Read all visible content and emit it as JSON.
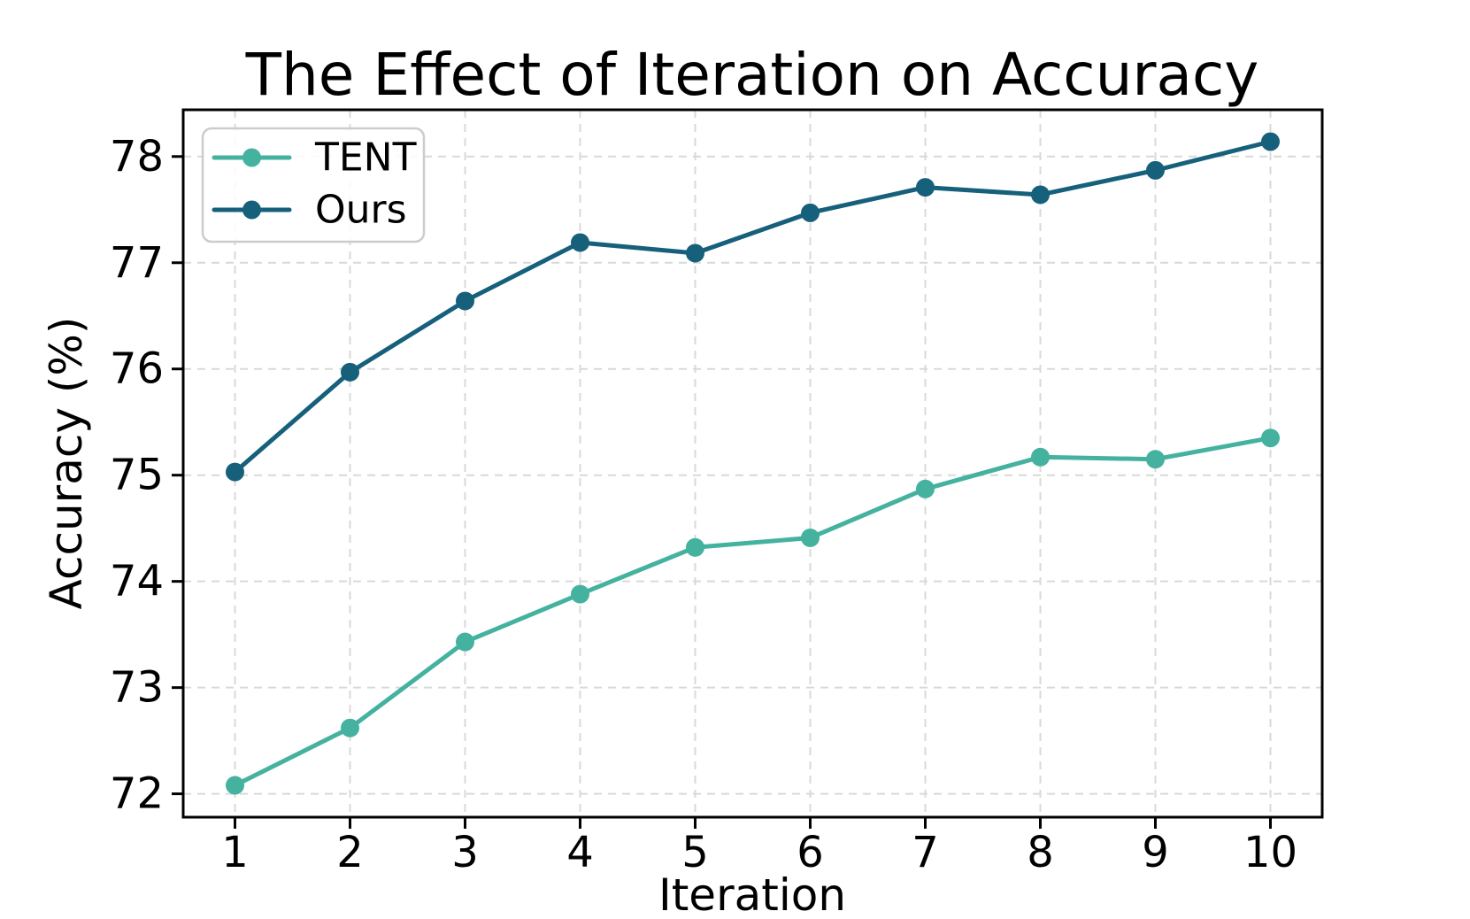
{
  "chart_data": {
    "type": "line",
    "title": "The Effect of Iteration on Accuracy",
    "xlabel": "Iteration",
    "ylabel": "Accuracy (%)",
    "x": [
      1,
      2,
      3,
      4,
      5,
      6,
      7,
      8,
      9,
      10
    ],
    "series": [
      {
        "name": "TENT",
        "color": "#45b2a0",
        "values": [
          72.08,
          72.62,
          73.43,
          73.88,
          74.32,
          74.41,
          74.87,
          75.17,
          75.15,
          75.35
        ]
      },
      {
        "name": "Ours",
        "color": "#16607c",
        "values": [
          75.03,
          75.97,
          76.64,
          77.19,
          77.09,
          77.47,
          77.71,
          77.64,
          77.87,
          78.14
        ]
      }
    ],
    "xticks": [
      1,
      2,
      3,
      4,
      5,
      6,
      7,
      8,
      9,
      10
    ],
    "yticks": [
      72,
      73,
      74,
      75,
      76,
      77,
      78
    ],
    "xlim": [
      0.55,
      10.45
    ],
    "ylim": [
      71.78,
      78.44
    ],
    "grid": true,
    "grid_style": "dashed",
    "grid_color": "#d9d9d9",
    "legend_position": "upper left",
    "marker": "circle",
    "axis_color": "#000000"
  }
}
